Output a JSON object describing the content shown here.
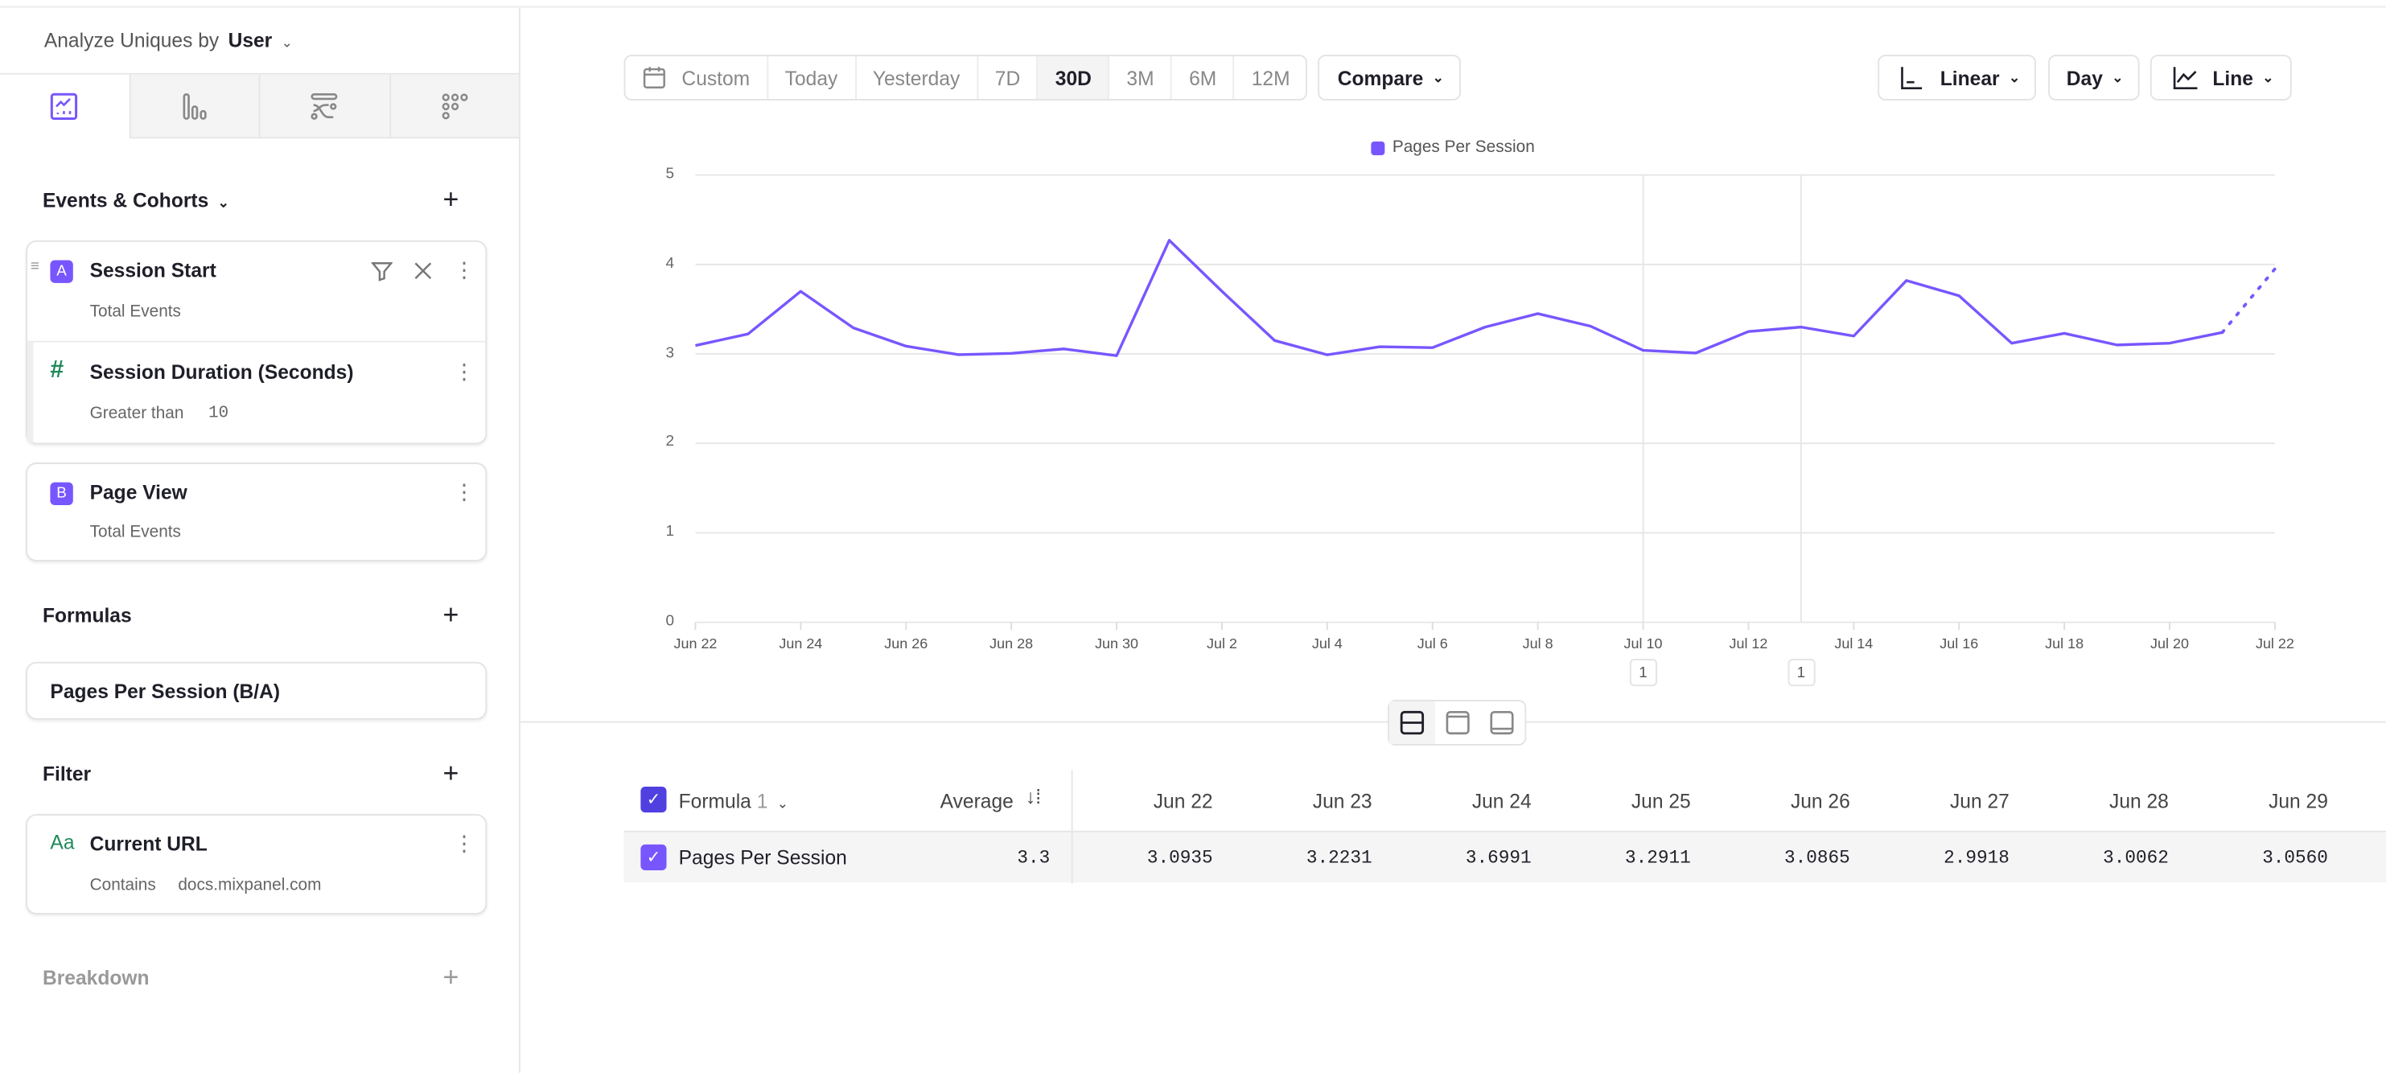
{
  "sidebar": {
    "analyze_label": "Analyze Uniques by",
    "analyze_value": "User",
    "tabs": [
      {
        "icon": "insights-chart-icon",
        "active": true
      },
      {
        "icon": "funnels-bars-icon"
      },
      {
        "icon": "flows-icon"
      },
      {
        "icon": "retention-grid-icon"
      }
    ],
    "events_title": "Events & Cohorts",
    "event_a": {
      "letter": "A",
      "name": "Session Start",
      "measure": "Total Events",
      "filter": {
        "name": "Session Duration (Seconds)",
        "operator": "Greater than",
        "value": "10"
      }
    },
    "event_b": {
      "letter": "B",
      "name": "Page View",
      "measure": "Total Events"
    },
    "formulas_title": "Formulas",
    "formula": "Pages Per Session (B/A)",
    "filter_title": "Filter",
    "filter": {
      "type_icon": "Aa",
      "name": "Current URL",
      "operator": "Contains",
      "value": "docs.mixpanel.com"
    },
    "breakdown_title": "Breakdown"
  },
  "toolbar": {
    "custom": "Custom",
    "ranges": [
      "Today",
      "Yesterday",
      "7D",
      "30D",
      "3M",
      "6M",
      "12M"
    ],
    "selected_range": "30D",
    "compare": "Compare",
    "scale": "Linear",
    "interval": "Day",
    "chart_type": "Line"
  },
  "colors": {
    "accent": "#7856ff",
    "formula_checkbox": "#5040e0",
    "green": "#1f8a5b"
  },
  "chart_data": {
    "type": "line",
    "legend": "Pages Per Session",
    "legend_placement": "top-center",
    "ylim": [
      0,
      5
    ],
    "yticks": [
      "0",
      "1",
      "2",
      "3",
      "4",
      "5"
    ],
    "grid": true,
    "x": [
      "Jun 22",
      "Jun 23",
      "Jun 24",
      "Jun 25",
      "Jun 26",
      "Jun 27",
      "Jun 28",
      "Jun 29",
      "Jun 30",
      "Jul 1",
      "Jul 2",
      "Jul 3",
      "Jul 4",
      "Jul 5",
      "Jul 6",
      "Jul 7",
      "Jul 8",
      "Jul 9",
      "Jul 10",
      "Jul 11",
      "Jul 12",
      "Jul 13",
      "Jul 14",
      "Jul 15",
      "Jul 16",
      "Jul 17",
      "Jul 18",
      "Jul 19",
      "Jul 20",
      "Jul 21",
      "Jul 22"
    ],
    "xticks": [
      "Jun 22",
      "Jun 24",
      "Jun 26",
      "Jun 28",
      "Jun 30",
      "Jul 2",
      "Jul 4",
      "Jul 6",
      "Jul 8",
      "Jul 10",
      "Jul 12",
      "Jul 14",
      "Jul 16",
      "Jul 18",
      "Jul 20",
      "Jul 22"
    ],
    "series": [
      {
        "name": "Pages Per Session",
        "color": "#7856ff",
        "values": [
          3.0935,
          3.2231,
          3.6991,
          3.2911,
          3.0865,
          2.9918,
          3.0062,
          3.056,
          2.98,
          4.27,
          3.7,
          3.15,
          2.99,
          3.08,
          3.07,
          3.3,
          3.45,
          3.31,
          3.04,
          3.01,
          3.25,
          3.3,
          3.2,
          3.82,
          3.65,
          3.12,
          3.23,
          3.1,
          3.12,
          3.24,
          3.95
        ],
        "last_point_partial": true
      }
    ],
    "annotations": [
      {
        "date": "Jul 10",
        "label": "1"
      },
      {
        "date": "Jul 13",
        "label": "1"
      }
    ]
  },
  "table": {
    "group_header": "Formula",
    "group_count": "1",
    "average_header": "Average",
    "date_headers": [
      "Jun 22",
      "Jun 23",
      "Jun 24",
      "Jun 25",
      "Jun 26",
      "Jun 27",
      "Jun 28",
      "Jun 29"
    ],
    "rows": [
      {
        "name": "Pages Per Session",
        "average": "3.3",
        "values": [
          "3.0935",
          "3.2231",
          "3.6991",
          "3.2911",
          "3.0865",
          "2.9918",
          "3.0062",
          "3.0560"
        ]
      }
    ]
  }
}
